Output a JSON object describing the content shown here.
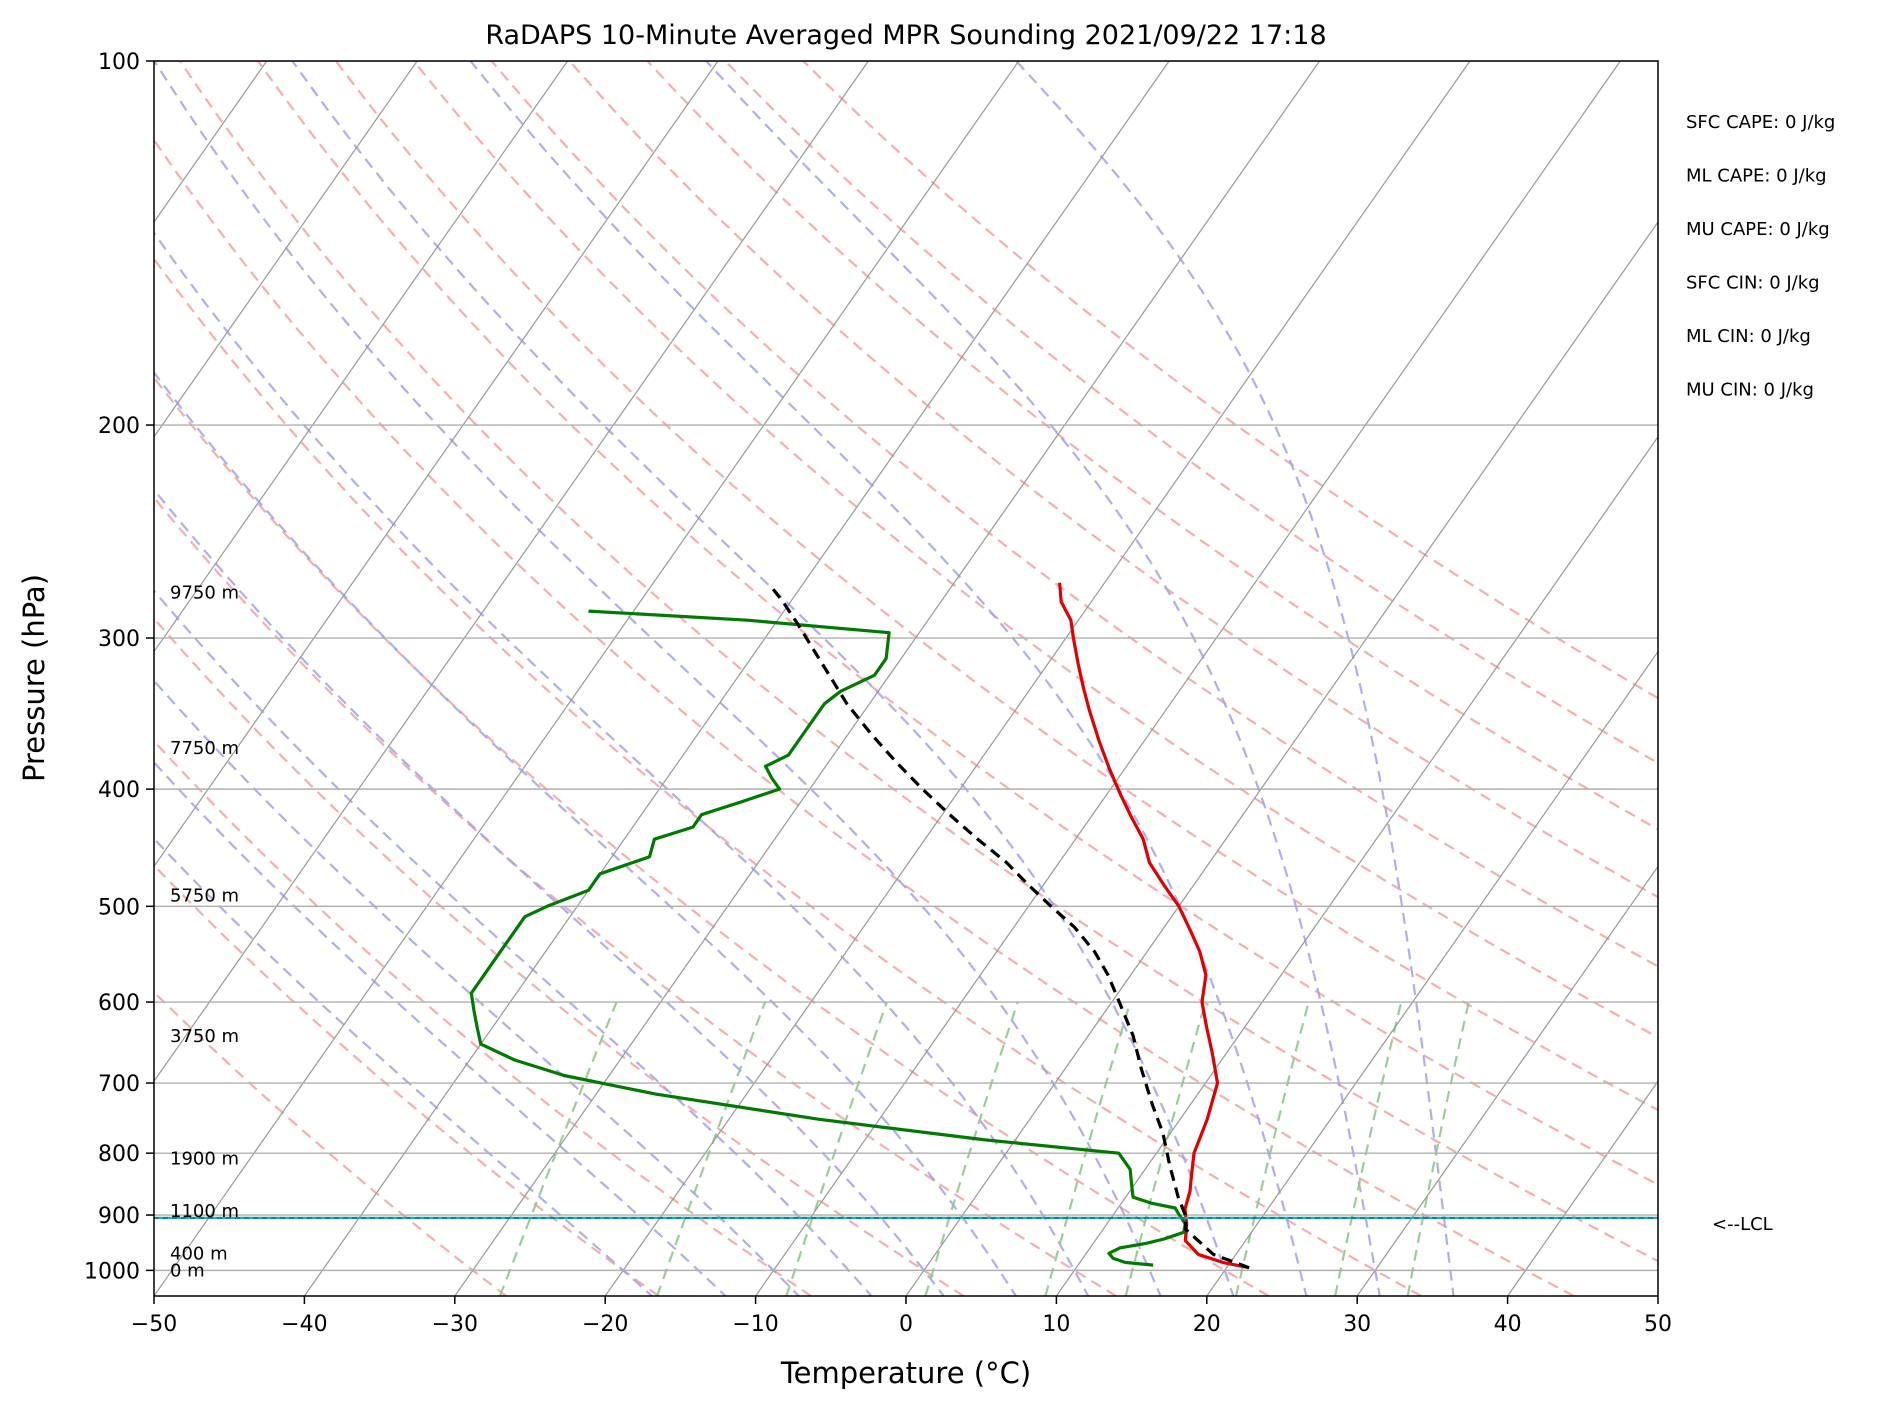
{
  "chart_data": {
    "type": "line",
    "subtype": "skew-t log-p sounding",
    "title": "RaDAPS 10-Minute Averaged MPR Sounding 2021/09/22 17:18",
    "xlabel": "Temperature (°C)",
    "ylabel": "Pressure (hPa)",
    "xlim": [
      -50,
      50
    ],
    "ylim": [
      1050,
      100
    ],
    "y_scale": "log",
    "x_ticks": [
      -50,
      -40,
      -30,
      -20,
      -10,
      0,
      10,
      20,
      30,
      40,
      50
    ],
    "x_tick_labels": [
      "−50",
      "−40",
      "−30",
      "−20",
      "−10",
      "0",
      "10",
      "20",
      "30",
      "40",
      "50"
    ],
    "y_ticks": [
      100,
      200,
      300,
      400,
      500,
      600,
      700,
      800,
      900,
      1000
    ],
    "y_tick_labels": [
      "100",
      "200",
      "300",
      "400",
      "500",
      "600",
      "700",
      "800",
      "900",
      "1000"
    ],
    "grid": true,
    "colors": {
      "temperature": "#e00000",
      "dewpoint": "#007a00",
      "parcel": "#000000",
      "isotherm": "#999999",
      "dry_adiabat": "#f4a0a0",
      "moist_adiabat": "#a0a0f0",
      "mixing_ratio": "#90c890",
      "lcl": "#20b2aa"
    },
    "series": [
      {
        "key": "temperature",
        "points": [
          [
            21.5,
            995
          ],
          [
            19.5,
            985
          ],
          [
            17.5,
            970
          ],
          [
            16,
            945
          ],
          [
            15.3,
            915
          ],
          [
            14.5,
            890
          ],
          [
            14,
            860
          ],
          [
            13.5,
            840
          ],
          [
            12.5,
            800
          ],
          [
            11.8,
            750
          ],
          [
            10.8,
            700
          ],
          [
            9,
            660
          ],
          [
            7.5,
            630
          ],
          [
            6,
            600
          ],
          [
            5,
            570
          ],
          [
            3.5,
            545
          ],
          [
            2,
            525
          ],
          [
            0,
            500
          ],
          [
            -2,
            480
          ],
          [
            -4,
            460
          ],
          [
            -5.5,
            440
          ],
          [
            -7.5,
            420
          ],
          [
            -9,
            405
          ],
          [
            -11,
            385
          ],
          [
            -13,
            365
          ],
          [
            -15,
            345
          ],
          [
            -16.5,
            330
          ],
          [
            -18,
            315
          ],
          [
            -19.5,
            300
          ],
          [
            -20.5,
            290
          ],
          [
            -22,
            280
          ],
          [
            -23,
            270
          ]
        ],
        "line_style": "solid"
      },
      {
        "key": "dewpoint",
        "points": [
          [
            15,
            990
          ],
          [
            13,
            985
          ],
          [
            12,
            977
          ],
          [
            11.5,
            968
          ],
          [
            12,
            958
          ],
          [
            13.5,
            950
          ],
          [
            14.5,
            942
          ],
          [
            15.5,
            930
          ],
          [
            15.2,
            915
          ],
          [
            14.3,
            898
          ],
          [
            13.8,
            888
          ],
          [
            12,
            880
          ],
          [
            10.5,
            870
          ],
          [
            10,
            855
          ],
          [
            9,
            825
          ],
          [
            7.5,
            800
          ],
          [
            -2,
            780
          ],
          [
            -14,
            750
          ],
          [
            -26,
            715
          ],
          [
            -33,
            690
          ],
          [
            -37,
            670
          ],
          [
            -40,
            650
          ],
          [
            -41,
            630
          ],
          [
            -42,
            610
          ],
          [
            -43,
            590
          ],
          [
            -43,
            570
          ],
          [
            -43,
            545
          ],
          [
            -43,
            520
          ],
          [
            -43,
            510
          ],
          [
            -42,
            500
          ],
          [
            -40,
            485
          ],
          [
            -40,
            470
          ],
          [
            -37.5,
            455
          ],
          [
            -38,
            440
          ],
          [
            -36,
            430
          ],
          [
            -36,
            420
          ],
          [
            -34,
            410
          ],
          [
            -32,
            400
          ],
          [
            -33,
            392
          ],
          [
            -34,
            383
          ],
          [
            -33,
            375
          ],
          [
            -33,
            365
          ],
          [
            -33,
            350
          ],
          [
            -33,
            340
          ],
          [
            -32.5,
            332
          ],
          [
            -31,
            322
          ],
          [
            -31,
            312
          ],
          [
            -32,
            297
          ],
          [
            -42,
            290
          ],
          [
            -53,
            285
          ]
        ],
        "line_style": "solid"
      },
      {
        "key": "parcel",
        "points": [
          [
            21.5,
            995
          ],
          [
            18.5,
            970
          ],
          [
            15.5,
            925
          ],
          [
            14.8,
            900
          ],
          [
            13.5,
            870
          ],
          [
            11.5,
            820
          ],
          [
            9.5,
            770
          ],
          [
            7.5,
            730
          ],
          [
            5,
            680
          ],
          [
            3,
            640
          ],
          [
            0.5,
            600
          ],
          [
            -1.5,
            570
          ],
          [
            -3.5,
            545
          ],
          [
            -6,
            520
          ],
          [
            -8.5,
            500
          ],
          [
            -11,
            480
          ],
          [
            -13.5,
            460
          ],
          [
            -16.5,
            440
          ],
          [
            -19.5,
            420
          ],
          [
            -22.5,
            400
          ],
          [
            -25.5,
            380
          ],
          [
            -28.5,
            360
          ],
          [
            -31.5,
            340
          ],
          [
            -34,
            322
          ],
          [
            -36.5,
            305
          ],
          [
            -38.5,
            292
          ],
          [
            -40.5,
            280
          ],
          [
            -42,
            272
          ]
        ],
        "line_style": "dashed"
      }
    ],
    "lcl_pressure": 905,
    "altitude_labels": [
      {
        "text": "9750 m",
        "p": 275
      },
      {
        "text": "7750 m",
        "p": 370
      },
      {
        "text": "5750 m",
        "p": 490
      },
      {
        "text": "3750 m",
        "p": 640
      },
      {
        "text": "1900 m",
        "p": 808
      },
      {
        "text": "1100 m",
        "p": 893
      },
      {
        "text": "400 m",
        "p": 968
      },
      {
        "text": "0 m",
        "p": 1000
      }
    ],
    "lcl_label": "<--LCL",
    "stats": [
      "SFC CAPE: 0 J/kg",
      "ML CAPE: 0 J/kg",
      "MU CAPE: 0 J/kg",
      "SFC CIN: 0 J/kg",
      "ML CIN: 0 J/kg",
      "MU CIN: 0 J/kg"
    ],
    "skew_background": {
      "isotherms_c": [
        -150,
        -140,
        -130,
        -120,
        -110,
        -100,
        -90,
        -80,
        -70,
        -60,
        -50,
        -40,
        -30,
        -20,
        -10,
        0,
        10,
        20,
        30,
        40
      ],
      "dry_adiabats_c": [
        -30,
        -20,
        -10,
        0,
        10,
        20,
        30,
        40,
        50,
        60,
        70,
        80,
        90,
        100,
        110,
        120,
        130
      ],
      "moist_adiabats_c": [
        -20,
        -15,
        -10,
        -5,
        0,
        5,
        10,
        15,
        20,
        25,
        30,
        35
      ],
      "mixing_ratios_gkg": [
        0.4,
        1,
        2,
        4,
        7,
        10,
        16,
        24,
        32
      ]
    }
  }
}
